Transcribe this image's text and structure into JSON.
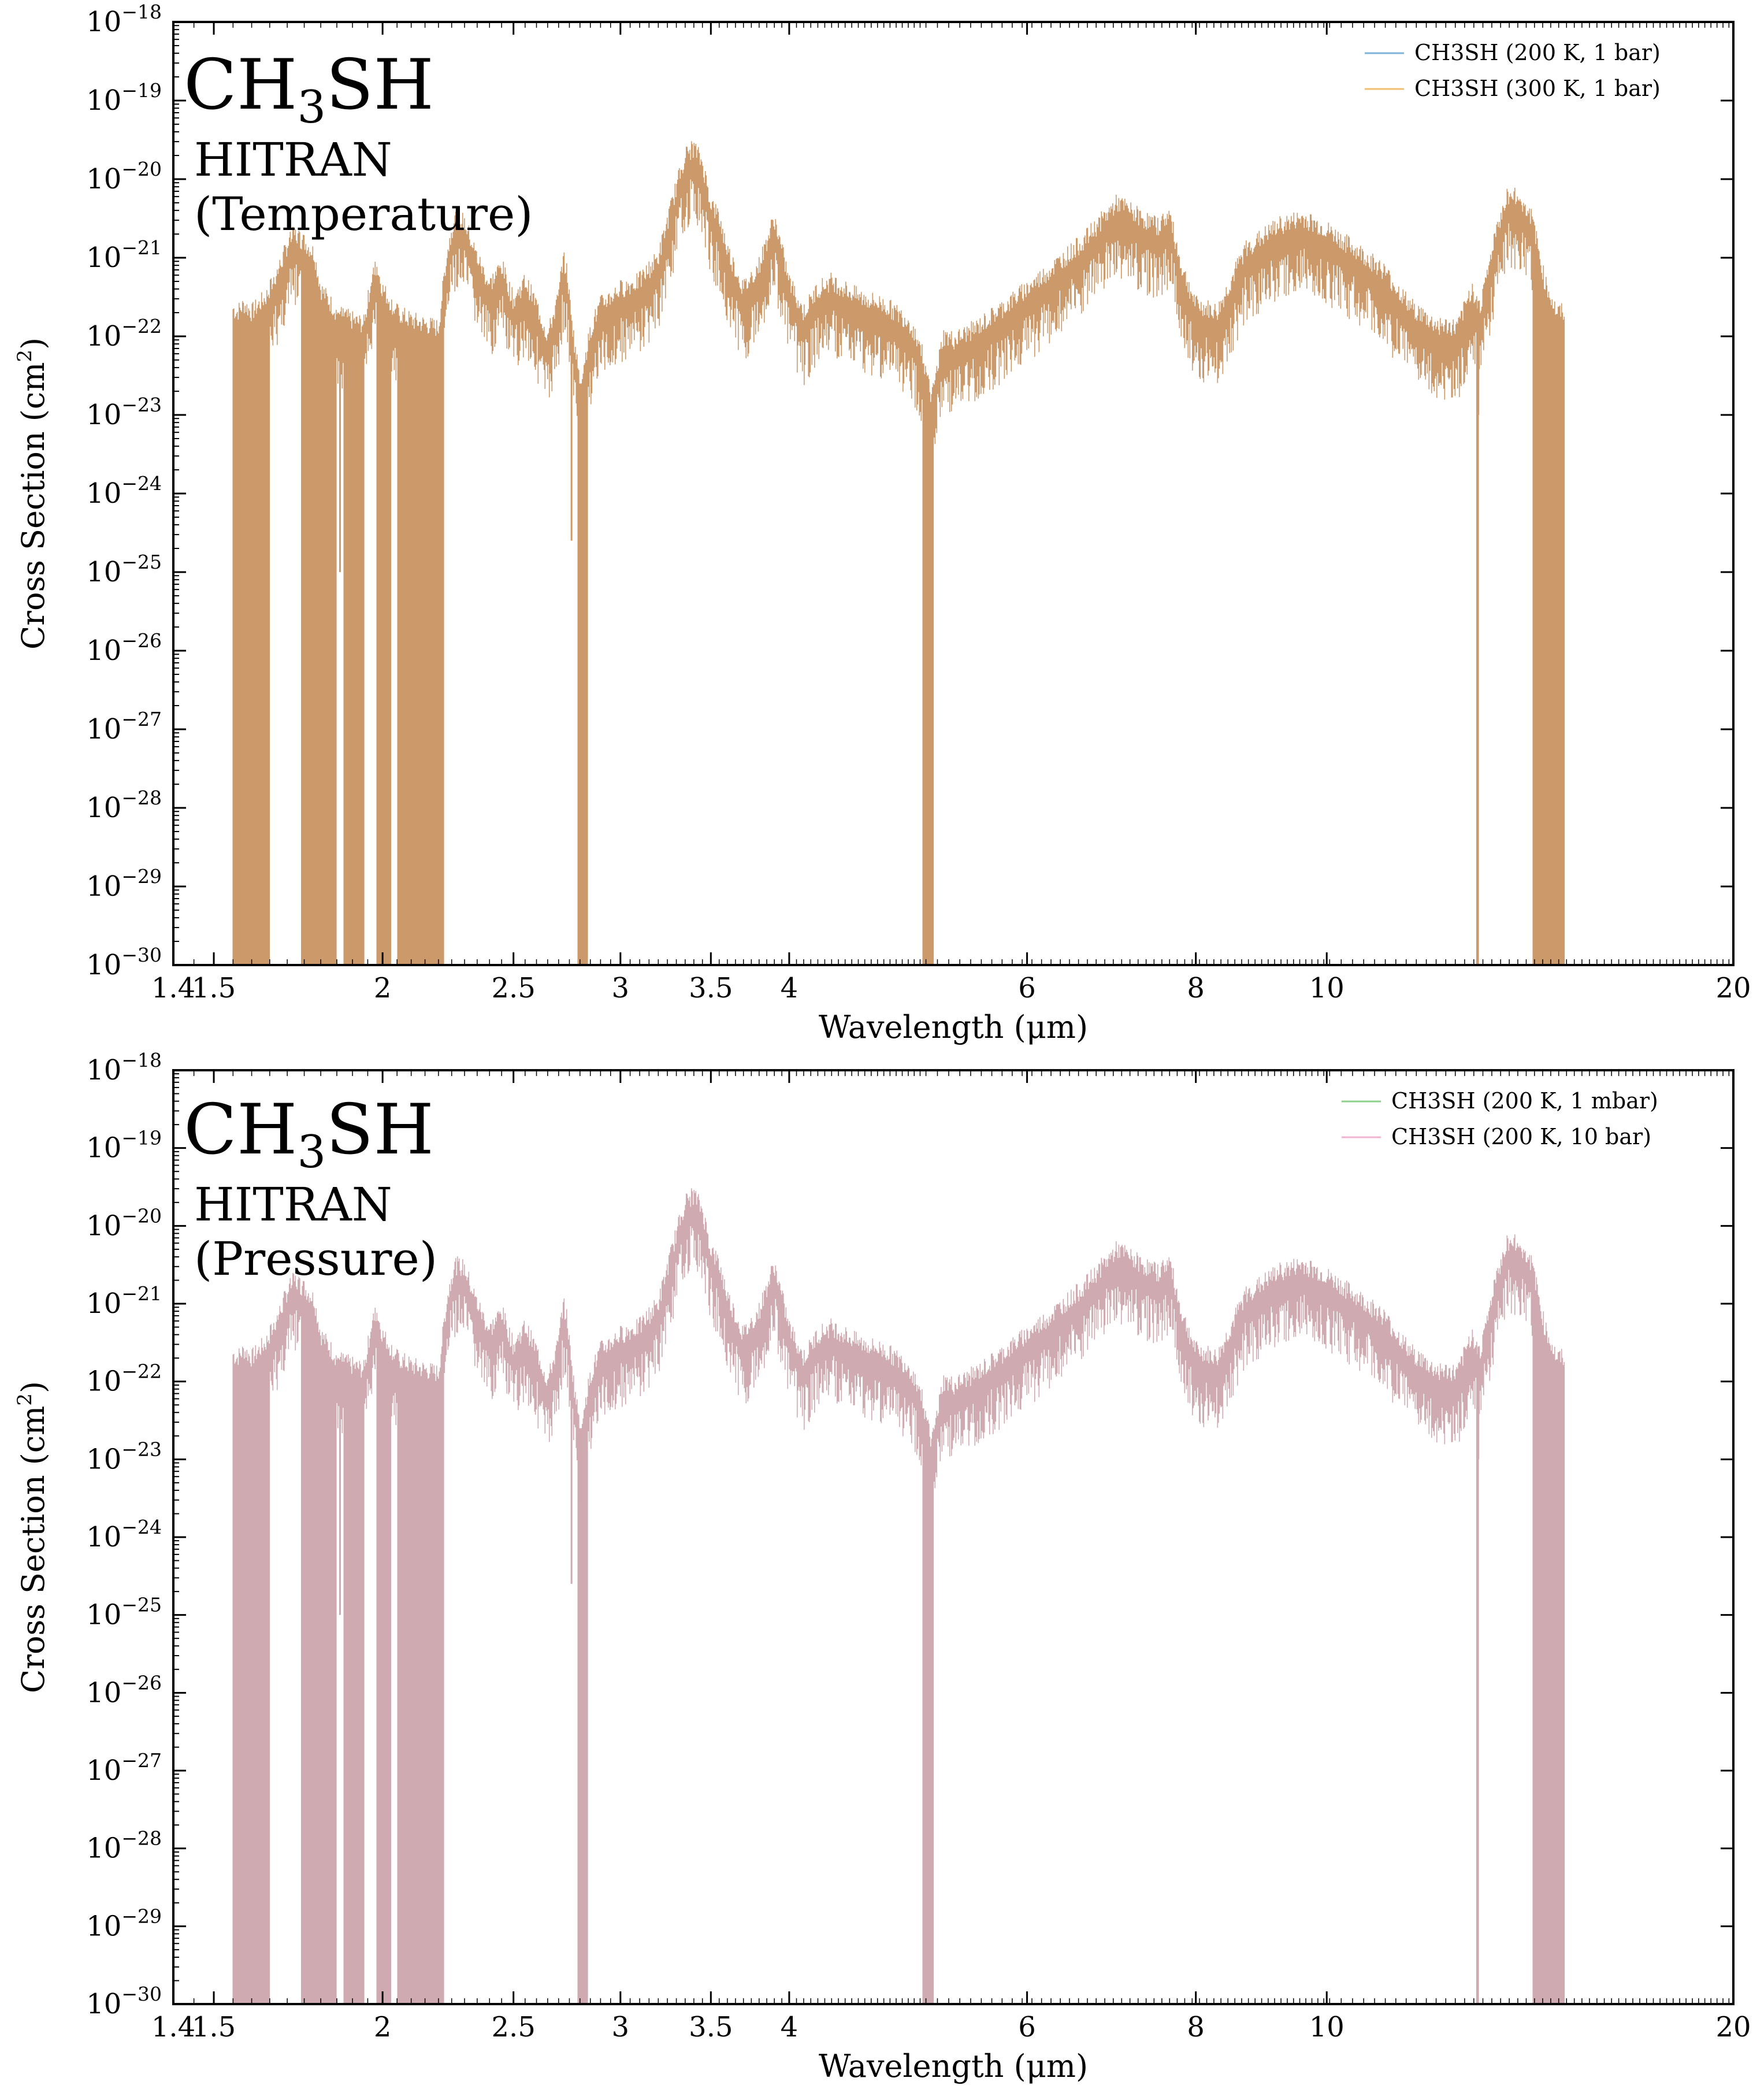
{
  "chart_data": [
    {
      "type": "line",
      "panel": "temperature",
      "molecule": {
        "base": "CH",
        "subscript": "3",
        "tail": "SH"
      },
      "database_label": "HITRAN",
      "variation_label": "(Temperature)",
      "xlabel": "Wavelength (μm)",
      "ylabel_main": "Cross Section (cm",
      "ylabel_sup": "2",
      "ylabel_close": ")",
      "xscale": "log",
      "yscale": "log",
      "xlim": [
        1.4,
        20
      ],
      "ylim": [
        1e-30,
        1e-18
      ],
      "x_ticks": [
        {
          "value": 1.4,
          "label": "1.4"
        },
        {
          "value": 1.5,
          "label": "1.5"
        },
        {
          "value": 2,
          "label": "2"
        },
        {
          "value": 2.5,
          "label": "2.5"
        },
        {
          "value": 3,
          "label": "3"
        },
        {
          "value": 3.5,
          "label": "3.5"
        },
        {
          "value": 4,
          "label": "4"
        },
        {
          "value": 6,
          "label": "6"
        },
        {
          "value": 8,
          "label": "8"
        },
        {
          "value": 10,
          "label": "10"
        },
        {
          "value": 20,
          "label": "20"
        }
      ],
      "y_ticks": [
        {
          "exp": -30,
          "base": "10",
          "sup": "−30"
        },
        {
          "exp": -29,
          "base": "10",
          "sup": "−29"
        },
        {
          "exp": -28,
          "base": "10",
          "sup": "−28"
        },
        {
          "exp": -27,
          "base": "10",
          "sup": "−27"
        },
        {
          "exp": -26,
          "base": "10",
          "sup": "−26"
        },
        {
          "exp": -25,
          "base": "10",
          "sup": "−25"
        },
        {
          "exp": -24,
          "base": "10",
          "sup": "−24"
        },
        {
          "exp": -23,
          "base": "10",
          "sup": "−23"
        },
        {
          "exp": -22,
          "base": "10",
          "sup": "−22"
        },
        {
          "exp": -21,
          "base": "10",
          "sup": "−21"
        },
        {
          "exp": -20,
          "base": "10",
          "sup": "−20"
        },
        {
          "exp": -19,
          "base": "10",
          "sup": "−19"
        },
        {
          "exp": -18,
          "base": "10",
          "sup": "−18"
        }
      ],
      "legend_position": "top-right",
      "series": [
        {
          "name": "CH3SH (200 K, 1 bar)",
          "color": "#7fb3d8"
        },
        {
          "name": "CH3SH (300 K, 1 bar)",
          "color": "#f2be6e"
        }
      ],
      "fill_color": "#cc9a6a",
      "envelope": {
        "x": [
          1.55,
          1.56,
          1.58,
          1.6,
          1.62,
          1.64,
          1.66,
          1.68,
          1.7,
          1.72,
          1.75,
          1.78,
          1.8,
          1.85,
          1.9,
          1.94,
          1.96,
          1.98,
          2.0,
          2.05,
          2.1,
          2.15,
          2.2,
          2.23,
          2.26,
          2.3,
          2.35,
          2.4,
          2.45,
          2.5,
          2.55,
          2.6,
          2.65,
          2.7,
          2.72,
          2.74,
          2.76,
          2.78,
          2.8,
          2.83,
          2.86,
          2.9,
          3.0,
          3.1,
          3.2,
          3.3,
          3.35,
          3.4,
          3.45,
          3.5,
          3.55,
          3.6,
          3.7,
          3.8,
          3.85,
          3.9,
          4.0,
          4.1,
          4.2,
          4.3,
          4.5,
          4.7,
          4.9,
          5.0,
          5.1,
          5.2,
          5.3,
          5.5,
          5.8,
          6.2,
          6.6,
          7.0,
          7.3,
          7.5,
          7.65,
          7.8,
          8.0,
          8.3,
          8.7,
          9.2,
          9.6,
          10.0,
          10.5,
          11.0,
          11.5,
          12.0,
          12.5,
          12.8,
          13.0,
          13.3,
          13.6,
          13.9,
          14.2,
          14.5,
          14.8,
          15.0
        ],
        "y_exp": [
          -21.65,
          -21.7,
          -21.6,
          -21.7,
          -21.6,
          -21.5,
          -21.3,
          -21.1,
          -20.85,
          -20.7,
          -20.8,
          -20.95,
          -21.4,
          -21.7,
          -21.8,
          -21.85,
          -21.3,
          -21.1,
          -21.4,
          -21.7,
          -21.8,
          -21.85,
          -21.9,
          -21.0,
          -20.5,
          -20.55,
          -21.0,
          -21.35,
          -21.1,
          -21.55,
          -21.3,
          -21.6,
          -22.0,
          -21.5,
          -21.0,
          -21.2,
          -21.8,
          -22.2,
          -22.6,
          -22.2,
          -21.85,
          -21.6,
          -21.4,
          -21.3,
          -21.0,
          -20.1,
          -19.7,
          -19.6,
          -19.8,
          -20.3,
          -20.5,
          -20.9,
          -21.4,
          -21.1,
          -20.8,
          -20.5,
          -21.3,
          -21.7,
          -21.4,
          -21.3,
          -21.5,
          -21.6,
          -21.8,
          -22.1,
          -22.8,
          -22.0,
          -22.05,
          -21.9,
          -21.6,
          -21.2,
          -20.8,
          -20.3,
          -20.5,
          -20.6,
          -20.45,
          -21.1,
          -21.6,
          -21.7,
          -20.9,
          -20.6,
          -20.5,
          -20.65,
          -20.9,
          -21.15,
          -21.6,
          -21.85,
          -21.9,
          -21.4,
          -21.6,
          -20.8,
          -20.2,
          -20.25,
          -20.5,
          -21.3,
          -21.7,
          -21.7
        ],
        "gaps": [
          [
            1.65,
            1.74
          ],
          [
            1.85,
            1.87
          ],
          [
            1.94,
            1.98
          ],
          [
            2.03,
            2.05
          ],
          [
            2.22,
            2.79
          ],
          [
            2.84,
            5.02
          ],
          [
            5.12,
            12.9
          ],
          [
            12.96,
            14.2
          ]
        ]
      }
    },
    {
      "type": "line",
      "panel": "pressure",
      "molecule": {
        "base": "CH",
        "subscript": "3",
        "tail": "SH"
      },
      "database_label": "HITRAN",
      "variation_label": "(Pressure)",
      "xlabel": "Wavelength (μm)",
      "ylabel_main": "Cross Section (cm",
      "ylabel_sup": "2",
      "ylabel_close": ")",
      "xscale": "log",
      "yscale": "log",
      "xlim": [
        1.4,
        20
      ],
      "ylim": [
        1e-30,
        1e-18
      ],
      "x_ticks": [
        {
          "value": 1.4,
          "label": "1.4"
        },
        {
          "value": 1.5,
          "label": "1.5"
        },
        {
          "value": 2,
          "label": "2"
        },
        {
          "value": 2.5,
          "label": "2.5"
        },
        {
          "value": 3,
          "label": "3"
        },
        {
          "value": 3.5,
          "label": "3.5"
        },
        {
          "value": 4,
          "label": "4"
        },
        {
          "value": 6,
          "label": "6"
        },
        {
          "value": 8,
          "label": "8"
        },
        {
          "value": 10,
          "label": "10"
        },
        {
          "value": 20,
          "label": "20"
        }
      ],
      "y_ticks": [
        {
          "exp": -30,
          "base": "10",
          "sup": "−30"
        },
        {
          "exp": -29,
          "base": "10",
          "sup": "−29"
        },
        {
          "exp": -28,
          "base": "10",
          "sup": "−28"
        },
        {
          "exp": -27,
          "base": "10",
          "sup": "−27"
        },
        {
          "exp": -26,
          "base": "10",
          "sup": "−26"
        },
        {
          "exp": -25,
          "base": "10",
          "sup": "−25"
        },
        {
          "exp": -24,
          "base": "10",
          "sup": "−24"
        },
        {
          "exp": -23,
          "base": "10",
          "sup": "−23"
        },
        {
          "exp": -22,
          "base": "10",
          "sup": "−22"
        },
        {
          "exp": -21,
          "base": "10",
          "sup": "−21"
        },
        {
          "exp": -20,
          "base": "10",
          "sup": "−20"
        },
        {
          "exp": -19,
          "base": "10",
          "sup": "−19"
        },
        {
          "exp": -18,
          "base": "10",
          "sup": "−18"
        }
      ],
      "legend_position": "top-right",
      "series": [
        {
          "name": "CH3SH (200 K, 1 mbar)",
          "color": "#8fd18c"
        },
        {
          "name": "CH3SH (200 K, 10 bar)",
          "color": "#f2b3d0"
        }
      ],
      "fill_color": "#cfaab0",
      "envelope": {
        "x": [
          1.55,
          1.56,
          1.58,
          1.6,
          1.62,
          1.64,
          1.66,
          1.68,
          1.7,
          1.72,
          1.75,
          1.78,
          1.8,
          1.85,
          1.9,
          1.94,
          1.96,
          1.98,
          2.0,
          2.05,
          2.1,
          2.15,
          2.2,
          2.23,
          2.26,
          2.3,
          2.35,
          2.4,
          2.45,
          2.5,
          2.55,
          2.6,
          2.65,
          2.7,
          2.72,
          2.74,
          2.76,
          2.78,
          2.8,
          2.83,
          2.86,
          2.9,
          3.0,
          3.1,
          3.2,
          3.3,
          3.35,
          3.4,
          3.45,
          3.5,
          3.55,
          3.6,
          3.7,
          3.8,
          3.85,
          3.9,
          4.0,
          4.1,
          4.2,
          4.3,
          4.5,
          4.7,
          4.9,
          5.0,
          5.1,
          5.2,
          5.3,
          5.5,
          5.8,
          6.2,
          6.6,
          7.0,
          7.3,
          7.5,
          7.65,
          7.8,
          8.0,
          8.3,
          8.7,
          9.2,
          9.6,
          10.0,
          10.5,
          11.0,
          11.5,
          12.0,
          12.5,
          12.8,
          13.0,
          13.3,
          13.6,
          13.9,
          14.2,
          14.5,
          14.8,
          15.0
        ],
        "y_exp": [
          -21.65,
          -21.7,
          -21.6,
          -21.7,
          -21.6,
          -21.5,
          -21.3,
          -21.1,
          -20.85,
          -20.7,
          -20.8,
          -20.95,
          -21.4,
          -21.7,
          -21.8,
          -21.85,
          -21.3,
          -21.1,
          -21.4,
          -21.7,
          -21.8,
          -21.85,
          -21.9,
          -21.0,
          -20.5,
          -20.55,
          -21.0,
          -21.35,
          -21.1,
          -21.55,
          -21.3,
          -21.6,
          -22.0,
          -21.5,
          -21.0,
          -21.2,
          -21.8,
          -22.2,
          -22.6,
          -22.2,
          -21.85,
          -21.6,
          -21.4,
          -21.3,
          -21.0,
          -20.1,
          -19.7,
          -19.6,
          -19.8,
          -20.3,
          -20.5,
          -20.9,
          -21.4,
          -21.1,
          -20.8,
          -20.5,
          -21.3,
          -21.7,
          -21.4,
          -21.3,
          -21.5,
          -21.6,
          -21.8,
          -22.1,
          -22.8,
          -22.0,
          -22.05,
          -21.9,
          -21.6,
          -21.2,
          -20.8,
          -20.3,
          -20.5,
          -20.6,
          -20.45,
          -21.1,
          -21.6,
          -21.7,
          -20.9,
          -20.6,
          -20.5,
          -20.65,
          -20.9,
          -21.15,
          -21.6,
          -21.85,
          -21.9,
          -21.4,
          -21.6,
          -20.8,
          -20.2,
          -20.25,
          -20.5,
          -21.3,
          -21.7,
          -21.7
        ],
        "gaps": [
          [
            1.65,
            1.74
          ],
          [
            1.85,
            1.87
          ],
          [
            1.94,
            1.98
          ],
          [
            2.03,
            2.05
          ],
          [
            2.22,
            2.79
          ],
          [
            2.84,
            5.02
          ],
          [
            5.12,
            12.9
          ],
          [
            12.96,
            14.2
          ]
        ]
      }
    }
  ]
}
